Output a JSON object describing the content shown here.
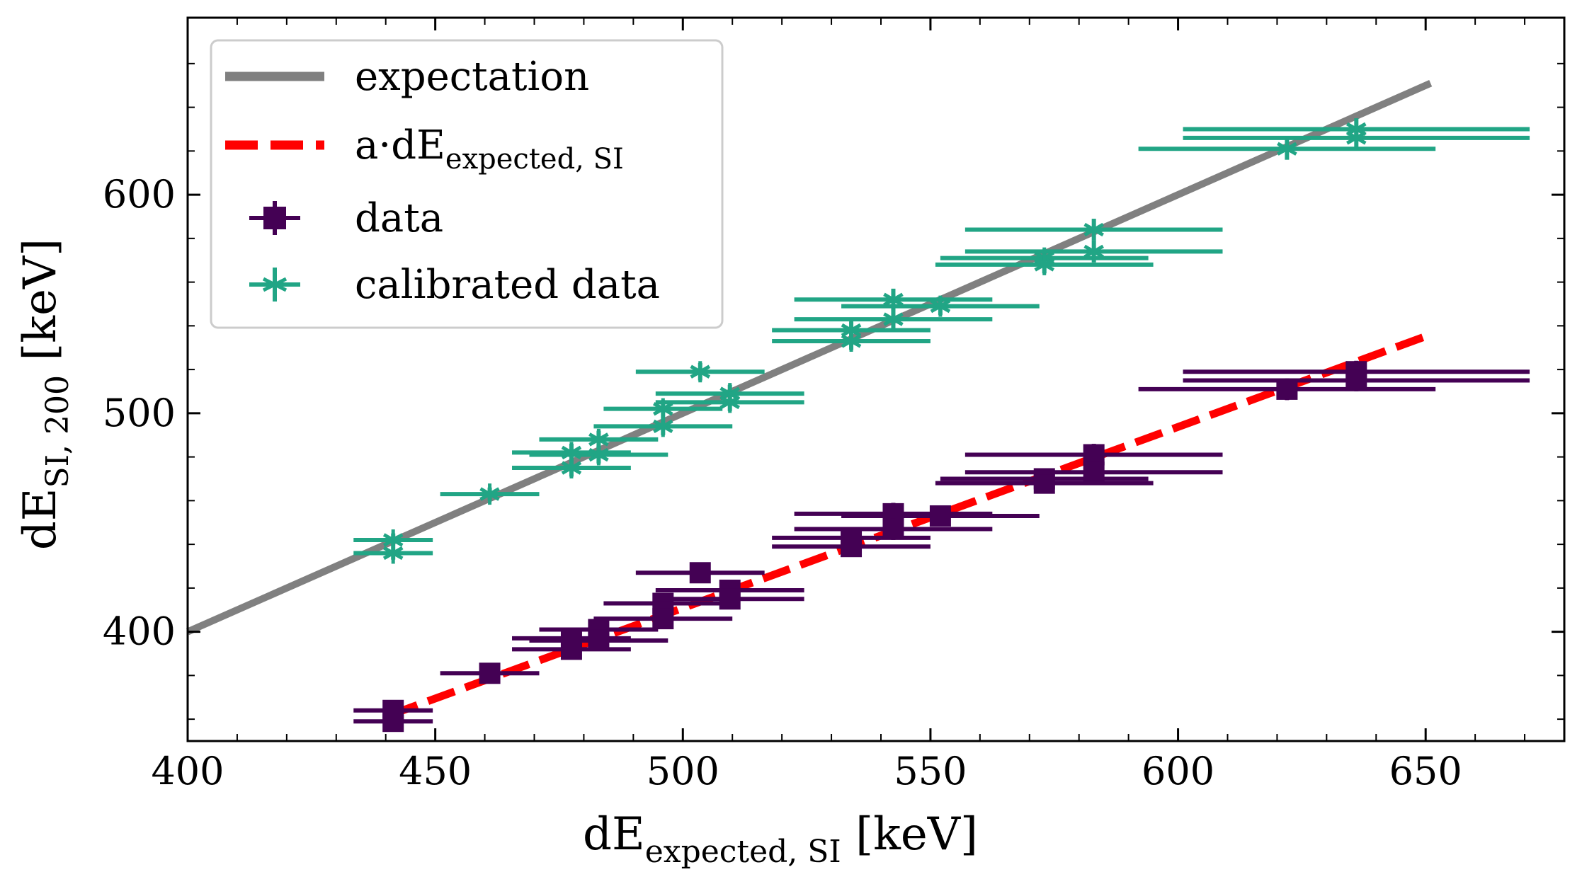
{
  "chart_data": {
    "type": "scatter",
    "title": "",
    "xlabel": {
      "main": "dE",
      "sub": "expected, SI",
      "unit": "[keV]"
    },
    "ylabel": {
      "main": "dE",
      "sub": "SI, 200",
      "unit": "[keV]"
    },
    "xlim": [
      400,
      678
    ],
    "ylim": [
      350,
      681
    ],
    "xticks": [
      400,
      450,
      500,
      550,
      600,
      650
    ],
    "xticks_minor": [
      410,
      420,
      430,
      440,
      460,
      470,
      480,
      490,
      510,
      520,
      530,
      540,
      560,
      570,
      580,
      590,
      610,
      620,
      630,
      640,
      660,
      670
    ],
    "yticks": [
      400,
      500,
      600
    ],
    "yticks_minor": [
      360,
      380,
      420,
      440,
      460,
      480,
      520,
      540,
      560,
      580,
      620,
      640,
      660
    ],
    "grid": false,
    "legend": {
      "position": "top-left",
      "entries": [
        {
          "key": "expectation",
          "text": "expectation"
        },
        {
          "key": "fit",
          "text_main": "a·dE",
          "text_sub": "expected, SI"
        },
        {
          "key": "data",
          "text": "data"
        },
        {
          "key": "calibrated",
          "text": "calibrated data"
        }
      ]
    },
    "lines": [
      {
        "name": "expectation",
        "color": "#808080",
        "style": "solid",
        "x": [
          400,
          651
        ],
        "y": [
          400,
          651
        ]
      },
      {
        "name": "a·dE_expected,SI",
        "color": "#ff0000",
        "style": "dashed",
        "x": [
          441,
          651
        ],
        "y": [
          362,
          536
        ]
      }
    ],
    "series": [
      {
        "name": "data",
        "color": "#440154",
        "marker": "square",
        "points": [
          {
            "x": 441.5,
            "y": 364,
            "xerr": 8,
            "yerr": 3
          },
          {
            "x": 441.5,
            "y": 359,
            "xerr": 8,
            "yerr": 3
          },
          {
            "x": 461,
            "y": 381,
            "xerr": 10,
            "yerr": 3
          },
          {
            "x": 477.5,
            "y": 397,
            "xerr": 12,
            "yerr": 4
          },
          {
            "x": 477.5,
            "y": 392,
            "xerr": 12,
            "yerr": 4
          },
          {
            "x": 483,
            "y": 401,
            "xerr": 12,
            "yerr": 4
          },
          {
            "x": 483,
            "y": 396,
            "xerr": 14,
            "yerr": 4
          },
          {
            "x": 496,
            "y": 413,
            "xerr": 12,
            "yerr": 4
          },
          {
            "x": 496,
            "y": 406,
            "xerr": 14,
            "yerr": 4
          },
          {
            "x": 503.5,
            "y": 427,
            "xerr": 13,
            "yerr": 4
          },
          {
            "x": 509.5,
            "y": 419,
            "xerr": 15,
            "yerr": 4
          },
          {
            "x": 509.5,
            "y": 415,
            "xerr": 15,
            "yerr": 4
          },
          {
            "x": 534,
            "y": 443,
            "xerr": 16,
            "yerr": 4
          },
          {
            "x": 534,
            "y": 439,
            "xerr": 16,
            "yerr": 4
          },
          {
            "x": 542.5,
            "y": 454,
            "xerr": 20,
            "yerr": 5
          },
          {
            "x": 542.5,
            "y": 447,
            "xerr": 20,
            "yerr": 5
          },
          {
            "x": 552,
            "y": 453,
            "xerr": 20,
            "yerr": 4
          },
          {
            "x": 573,
            "y": 470,
            "xerr": 21,
            "yerr": 4
          },
          {
            "x": 573,
            "y": 468,
            "xerr": 22,
            "yerr": 4
          },
          {
            "x": 583,
            "y": 481,
            "xerr": 26,
            "yerr": 5
          },
          {
            "x": 583,
            "y": 473,
            "xerr": 26,
            "yerr": 5
          },
          {
            "x": 622,
            "y": 511,
            "xerr": 30,
            "yerr": 5
          },
          {
            "x": 636,
            "y": 519,
            "xerr": 35,
            "yerr": 5
          },
          {
            "x": 636,
            "y": 515,
            "xerr": 35,
            "yerr": 5
          }
        ]
      },
      {
        "name": "calibrated data",
        "color": "#21a585",
        "marker": "asterisk",
        "points": [
          {
            "x": 441.5,
            "y": 442,
            "xerr": 8,
            "yerr": 3
          },
          {
            "x": 441.5,
            "y": 436,
            "xerr": 8,
            "yerr": 3
          },
          {
            "x": 461,
            "y": 463,
            "xerr": 10,
            "yerr": 3
          },
          {
            "x": 477.5,
            "y": 482,
            "xerr": 12,
            "yerr": 4
          },
          {
            "x": 477.5,
            "y": 475,
            "xerr": 12,
            "yerr": 4
          },
          {
            "x": 483,
            "y": 488,
            "xerr": 12,
            "yerr": 4
          },
          {
            "x": 483,
            "y": 481,
            "xerr": 14,
            "yerr": 4
          },
          {
            "x": 496,
            "y": 502,
            "xerr": 12,
            "yerr": 4
          },
          {
            "x": 496,
            "y": 494,
            "xerr": 14,
            "yerr": 4
          },
          {
            "x": 503.5,
            "y": 519,
            "xerr": 13,
            "yerr": 4
          },
          {
            "x": 509.5,
            "y": 509,
            "xerr": 15,
            "yerr": 4
          },
          {
            "x": 509.5,
            "y": 505,
            "xerr": 15,
            "yerr": 4
          },
          {
            "x": 534,
            "y": 538,
            "xerr": 16,
            "yerr": 4
          },
          {
            "x": 534,
            "y": 533,
            "xerr": 16,
            "yerr": 4
          },
          {
            "x": 542.5,
            "y": 552,
            "xerr": 20,
            "yerr": 5
          },
          {
            "x": 542.5,
            "y": 543,
            "xerr": 20,
            "yerr": 5
          },
          {
            "x": 552,
            "y": 549,
            "xerr": 20,
            "yerr": 4
          },
          {
            "x": 573,
            "y": 571,
            "xerr": 21,
            "yerr": 4
          },
          {
            "x": 573,
            "y": 568,
            "xerr": 22,
            "yerr": 4
          },
          {
            "x": 583,
            "y": 584,
            "xerr": 26,
            "yerr": 5
          },
          {
            "x": 583,
            "y": 574,
            "xerr": 26,
            "yerr": 5
          },
          {
            "x": 622,
            "y": 621,
            "xerr": 30,
            "yerr": 5
          },
          {
            "x": 636,
            "y": 630,
            "xerr": 35,
            "yerr": 5
          },
          {
            "x": 636,
            "y": 626,
            "xerr": 35,
            "yerr": 5
          }
        ]
      }
    ]
  }
}
